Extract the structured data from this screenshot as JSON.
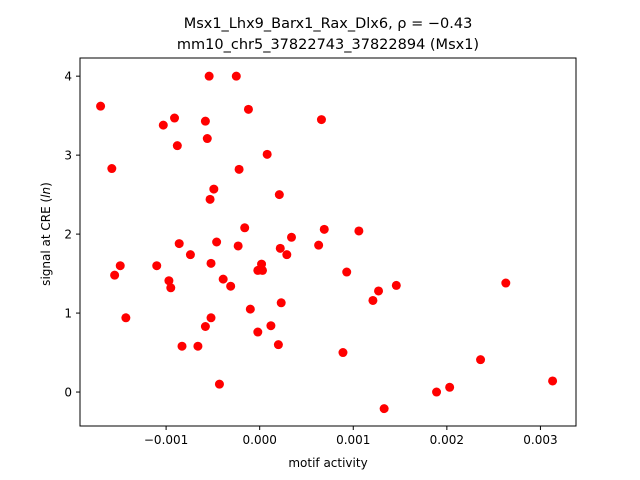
{
  "chart_data": {
    "type": "scatter",
    "title_line1_prefix": "Msx1_Lhx9_Barx1_Rax_Dlx6, ",
    "title_line1_stat": "ρ = −0.43",
    "title_line2": "mm10_chr5_37822743_37822894 (Msx1)",
    "xlabel": "motif activity",
    "ylabel_prefix": "signal at CRE (",
    "ylabel_italic": "ln",
    "ylabel_suffix": ")",
    "xlim": [
      -0.00192,
      0.00338
    ],
    "ylim": [
      -0.43,
      4.23
    ],
    "xticks": [
      -0.001,
      0.0,
      0.001,
      0.002,
      0.003
    ],
    "xtick_labels": [
      "−0.001",
      "0.000",
      "0.001",
      "0.002",
      "0.003"
    ],
    "yticks": [
      0,
      1,
      2,
      3,
      4
    ],
    "ytick_labels": [
      "0",
      "1",
      "2",
      "3",
      "4"
    ],
    "grid": false,
    "marker_color": "#ff0000",
    "points": [
      {
        "x": -0.0017,
        "y": 3.62
      },
      {
        "x": -0.00158,
        "y": 2.83
      },
      {
        "x": -0.00155,
        "y": 1.48
      },
      {
        "x": -0.00149,
        "y": 1.6
      },
      {
        "x": -0.00143,
        "y": 0.94
      },
      {
        "x": -0.0011,
        "y": 1.6
      },
      {
        "x": -0.00103,
        "y": 3.38
      },
      {
        "x": -0.00097,
        "y": 1.41
      },
      {
        "x": -0.00095,
        "y": 1.32
      },
      {
        "x": -0.00091,
        "y": 3.47
      },
      {
        "x": -0.00088,
        "y": 3.12
      },
      {
        "x": -0.00086,
        "y": 1.88
      },
      {
        "x": -0.00083,
        "y": 0.58
      },
      {
        "x": -0.00074,
        "y": 1.74
      },
      {
        "x": -0.00066,
        "y": 0.58
      },
      {
        "x": -0.00058,
        "y": 3.43
      },
      {
        "x": -0.00058,
        "y": 0.83
      },
      {
        "x": -0.00056,
        "y": 3.21
      },
      {
        "x": -0.00054,
        "y": 4.0
      },
      {
        "x": -0.00053,
        "y": 2.44
      },
      {
        "x": -0.00052,
        "y": 1.63
      },
      {
        "x": -0.00052,
        "y": 0.94
      },
      {
        "x": -0.00049,
        "y": 2.57
      },
      {
        "x": -0.00046,
        "y": 1.9
      },
      {
        "x": -0.00043,
        "y": 0.1
      },
      {
        "x": -0.00039,
        "y": 1.43
      },
      {
        "x": -0.00031,
        "y": 1.34
      },
      {
        "x": -0.00025,
        "y": 4.0
      },
      {
        "x": -0.00023,
        "y": 1.85
      },
      {
        "x": -0.00022,
        "y": 2.82
      },
      {
        "x": -0.00016,
        "y": 2.08
      },
      {
        "x": -0.00012,
        "y": 3.58
      },
      {
        "x": -0.0001,
        "y": 1.05
      },
      {
        "x": -2e-05,
        "y": 0.76
      },
      {
        "x": -2e-05,
        "y": 1.54
      },
      {
        "x": 2e-05,
        "y": 1.62
      },
      {
        "x": 3e-05,
        "y": 1.54
      },
      {
        "x": 8e-05,
        "y": 3.01
      },
      {
        "x": 0.00012,
        "y": 0.84
      },
      {
        "x": 0.0002,
        "y": 0.6
      },
      {
        "x": 0.00021,
        "y": 2.5
      },
      {
        "x": 0.00022,
        "y": 1.82
      },
      {
        "x": 0.00023,
        "y": 1.13
      },
      {
        "x": 0.00029,
        "y": 1.74
      },
      {
        "x": 0.00034,
        "y": 1.96
      },
      {
        "x": 0.00063,
        "y": 1.86
      },
      {
        "x": 0.00066,
        "y": 3.45
      },
      {
        "x": 0.00069,
        "y": 2.06
      },
      {
        "x": 0.00089,
        "y": 0.5
      },
      {
        "x": 0.00093,
        "y": 1.52
      },
      {
        "x": 0.00106,
        "y": 2.04
      },
      {
        "x": 0.00121,
        "y": 1.16
      },
      {
        "x": 0.00127,
        "y": 1.28
      },
      {
        "x": 0.00133,
        "y": -0.21
      },
      {
        "x": 0.00146,
        "y": 1.35
      },
      {
        "x": 0.00189,
        "y": 0.0
      },
      {
        "x": 0.00203,
        "y": 0.06
      },
      {
        "x": 0.00236,
        "y": 0.41
      },
      {
        "x": 0.00263,
        "y": 1.38
      },
      {
        "x": 0.00313,
        "y": 0.14
      }
    ]
  }
}
